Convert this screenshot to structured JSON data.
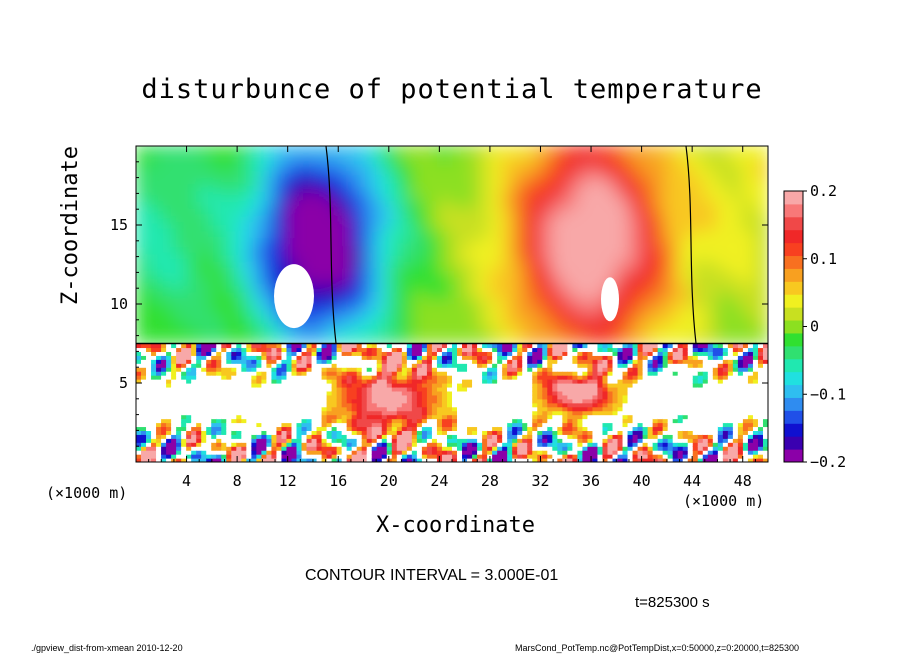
{
  "figure": {
    "title": "disturbunce of potential temperature",
    "contour_interval": "CONTOUR INTERVAL = 3.000E-01",
    "time_label": "t=825300 s",
    "footer_left": "./gpview_dist-from-xmean  2010-12-20",
    "footer_right": "MarsCond_PotTemp.nc@PotTempDist,x=0:50000,z=0:20000,t=825300"
  },
  "chart_data": {
    "type": "heatmap",
    "title": "disturbunce of potential temperature",
    "xlabel": "X-coordinate",
    "ylabel": "Z-coordinate",
    "x_unit": "(x1000 m)",
    "x_unit_display": "(×1000 m)",
    "xlim": [
      0,
      50
    ],
    "ylim": [
      0,
      20
    ],
    "x_ticks": [
      4,
      8,
      12,
      16,
      20,
      24,
      28,
      32,
      36,
      40,
      44,
      48
    ],
    "x_tick_labels": [
      "4",
      "8",
      "12",
      "16",
      "20",
      "24",
      "28",
      "32",
      "36",
      "40",
      "44",
      "48"
    ],
    "y_ticks": [
      5,
      10,
      15
    ],
    "y_tick_labels": [
      "5",
      "10",
      "15"
    ],
    "colorbar": {
      "range": [
        -0.2,
        0.2
      ],
      "ticks": [
        0.2,
        0.1,
        0,
        -0.1,
        -0.2
      ],
      "tick_labels": [
        "0.2",
        "0.1",
        "0",
        "−0.1",
        "−0.2"
      ],
      "colors": [
        "#8b00a8",
        "#3a00b0",
        "#1010d0",
        "#2050e8",
        "#2f8cf0",
        "#2fbef0",
        "#20e0e0",
        "#20e8b0",
        "#30e070",
        "#30e030",
        "#8ce020",
        "#c8e020",
        "#f0f020",
        "#f8c820",
        "#f8a020",
        "#f87020",
        "#f84020",
        "#f02828",
        "#f04848",
        "#f87878",
        "#f8a8a8"
      ]
    },
    "upper_features": [
      {
        "name": "cold plume",
        "x_center": 14,
        "z_center": 14.5,
        "value": -0.22
      },
      {
        "name": "warm plume",
        "x_center": 36,
        "z_center": 14.5,
        "value": 0.22
      }
    ],
    "boundary_layer_top_z": 7.5,
    "contour_interval": 0.3,
    "time_s": 825300
  }
}
